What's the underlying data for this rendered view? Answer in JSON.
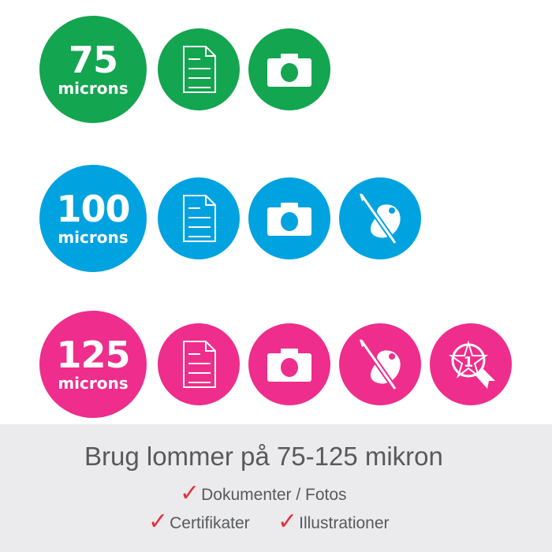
{
  "rows": [
    {
      "thickness": "75",
      "unit": "microns",
      "color": "#13a54f",
      "icons": [
        "document-icon",
        "camera-icon"
      ]
    },
    {
      "thickness": "100",
      "unit": "microns",
      "color": "#00a2df",
      "icons": [
        "document-icon",
        "camera-icon",
        "palette-icon"
      ]
    },
    {
      "thickness": "125",
      "unit": "microns",
      "color": "#ee2d8c",
      "icons": [
        "document-icon",
        "camera-icon",
        "palette-icon",
        "award-icon"
      ]
    }
  ],
  "footer": {
    "headline": "Brug lommer på 75-125 mikron",
    "check_mark": "✓",
    "check_color": "#e8303e",
    "items": [
      "Dokumenter / Fotos",
      "Certifikater",
      "Illustrationer"
    ]
  }
}
